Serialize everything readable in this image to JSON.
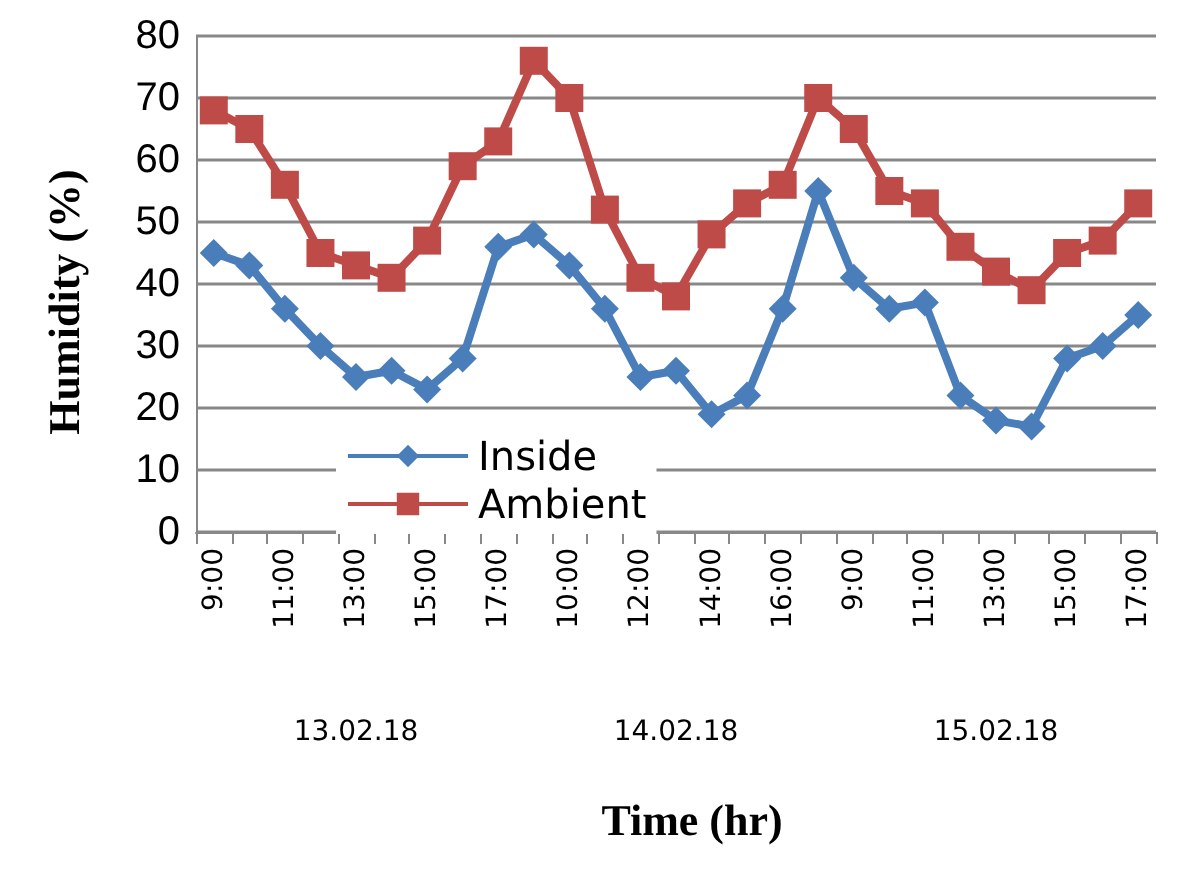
{
  "chart_data": {
    "type": "line",
    "xlabel": "Time (hr)",
    "ylabel": "Humidity (%)",
    "categories": [
      "9:00",
      null,
      "11:00",
      null,
      "13:00",
      null,
      "15:00",
      null,
      "17:00",
      null,
      "10:00",
      null,
      "12:00",
      null,
      "14:00",
      null,
      "16:00",
      null,
      "9:00",
      null,
      "11:00",
      null,
      "13:00",
      null,
      "15:00",
      null,
      "17:00"
    ],
    "series": [
      {
        "name": "Inside",
        "color": "#4a7ebb",
        "marker": "diamond",
        "values": [
          45,
          43,
          36,
          30,
          25,
          26,
          23,
          28,
          46,
          48,
          43,
          36,
          25,
          26,
          19,
          22,
          36,
          55,
          41,
          36,
          37,
          22,
          18,
          17,
          28,
          30,
          35
        ]
      },
      {
        "name": "Ambient",
        "color": "#be4b48",
        "marker": "square",
        "values": [
          68,
          65,
          56,
          45,
          43,
          41,
          47,
          59,
          63,
          76,
          70,
          52,
          41,
          38,
          48,
          53,
          56,
          70,
          65,
          55,
          53,
          46,
          42,
          39,
          45,
          47,
          53
        ]
      }
    ],
    "ylim": [
      0,
      80
    ],
    "yticks": [
      0,
      10,
      20,
      30,
      40,
      50,
      60,
      70,
      80
    ],
    "grid": "y",
    "legend": "bottom left",
    "annotations": [
      "13.02.18",
      "14.02.18",
      "15.02.18"
    ]
  }
}
